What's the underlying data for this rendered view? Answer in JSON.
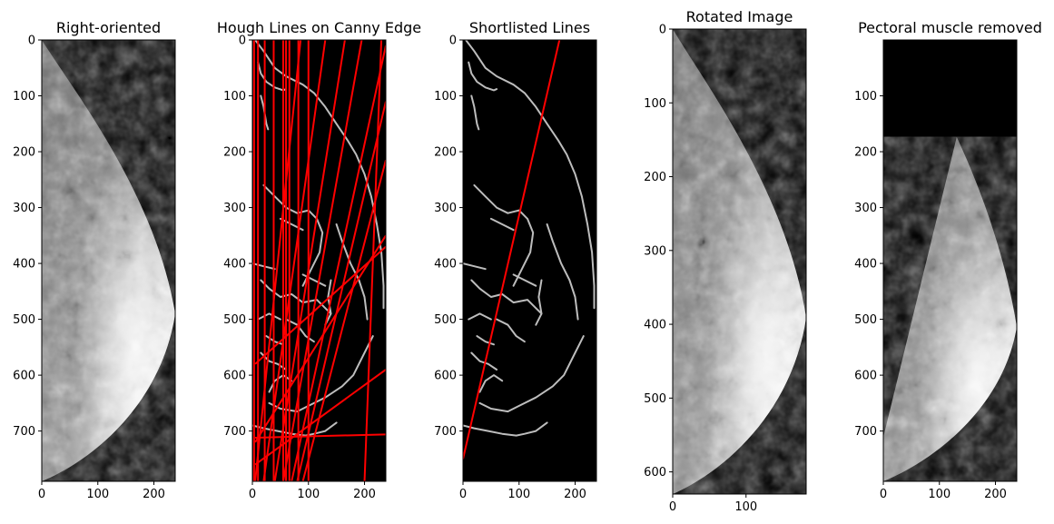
{
  "chart_data": [
    {
      "type": "image",
      "title": "Right-oriented",
      "xlim": [
        0,
        238
      ],
      "ylim": [
        790,
        0
      ],
      "xticks": [
        0,
        100,
        200
      ],
      "yticks": [
        0,
        100,
        200,
        300,
        400,
        500,
        600,
        700
      ],
      "content": "mammogram"
    },
    {
      "type": "image",
      "title": "Hough Lines on Canny Edge",
      "xlim": [
        0,
        238
      ],
      "ylim": [
        790,
        0
      ],
      "xticks": [
        0,
        100,
        200
      ],
      "yticks": [
        0,
        100,
        200,
        300,
        400,
        500,
        600,
        700
      ],
      "content": "edges",
      "line_color": "#ff0000",
      "lines": [
        [
          [
            3,
            790
          ],
          [
            3,
            0
          ]
        ],
        [
          [
            10,
            790
          ],
          [
            10,
            0
          ]
        ],
        [
          [
            22,
            790
          ],
          [
            22,
            0
          ]
        ],
        [
          [
            38,
            790
          ],
          [
            38,
            0
          ]
        ],
        [
          [
            55,
            790
          ],
          [
            55,
            0
          ]
        ],
        [
          [
            60,
            790
          ],
          [
            60,
            0
          ]
        ],
        [
          [
            66,
            790
          ],
          [
            66,
            0
          ]
        ],
        [
          [
            82,
            790
          ],
          [
            82,
            0
          ]
        ],
        [
          [
            100,
            790
          ],
          [
            100,
            0
          ]
        ],
        [
          [
            5,
            790
          ],
          [
            86,
            0
          ]
        ],
        [
          [
            20,
            790
          ],
          [
            130,
            0
          ]
        ],
        [
          [
            40,
            790
          ],
          [
            165,
            0
          ]
        ],
        [
          [
            55,
            790
          ],
          [
            195,
            0
          ]
        ],
        [
          [
            70,
            790
          ],
          [
            238,
            10
          ]
        ],
        [
          [
            80,
            790
          ],
          [
            238,
            110
          ]
        ],
        [
          [
            90,
            790
          ],
          [
            238,
            215
          ]
        ],
        [
          [
            5,
            720
          ],
          [
            238,
            350
          ]
        ],
        [
          [
            5,
            580
          ],
          [
            238,
            370
          ]
        ],
        [
          [
            5,
            760
          ],
          [
            238,
            590
          ]
        ],
        [
          [
            5,
            712
          ],
          [
            238,
            706
          ]
        ],
        [
          [
            200,
            790
          ],
          [
            230,
            0
          ]
        ]
      ]
    },
    {
      "type": "image",
      "title": "Shortlisted Lines",
      "xlim": [
        0,
        238
      ],
      "ylim": [
        790,
        0
      ],
      "xticks": [
        0,
        100,
        200
      ],
      "yticks": [
        0,
        100,
        200,
        300,
        400,
        500,
        600,
        700
      ],
      "content": "edges",
      "line_color": "#ff0000",
      "lines": [
        [
          [
            0,
            750
          ],
          [
            172,
            0
          ]
        ]
      ]
    },
    {
      "type": "image",
      "title": "Rotated Image",
      "xlim": [
        0,
        182
      ],
      "ylim": [
        630,
        0
      ],
      "xticks": [
        0,
        100
      ],
      "yticks": [
        0,
        100,
        200,
        300,
        400,
        500,
        600
      ],
      "content": "mammogram"
    },
    {
      "type": "image",
      "title": "Pectoral muscle removed",
      "xlim": [
        0,
        238
      ],
      "ylim": [
        790,
        0
      ],
      "xticks": [
        0,
        100,
        200
      ],
      "yticks": [
        100,
        200,
        300,
        400,
        500,
        600,
        700
      ],
      "content": "masked-mammogram"
    }
  ]
}
